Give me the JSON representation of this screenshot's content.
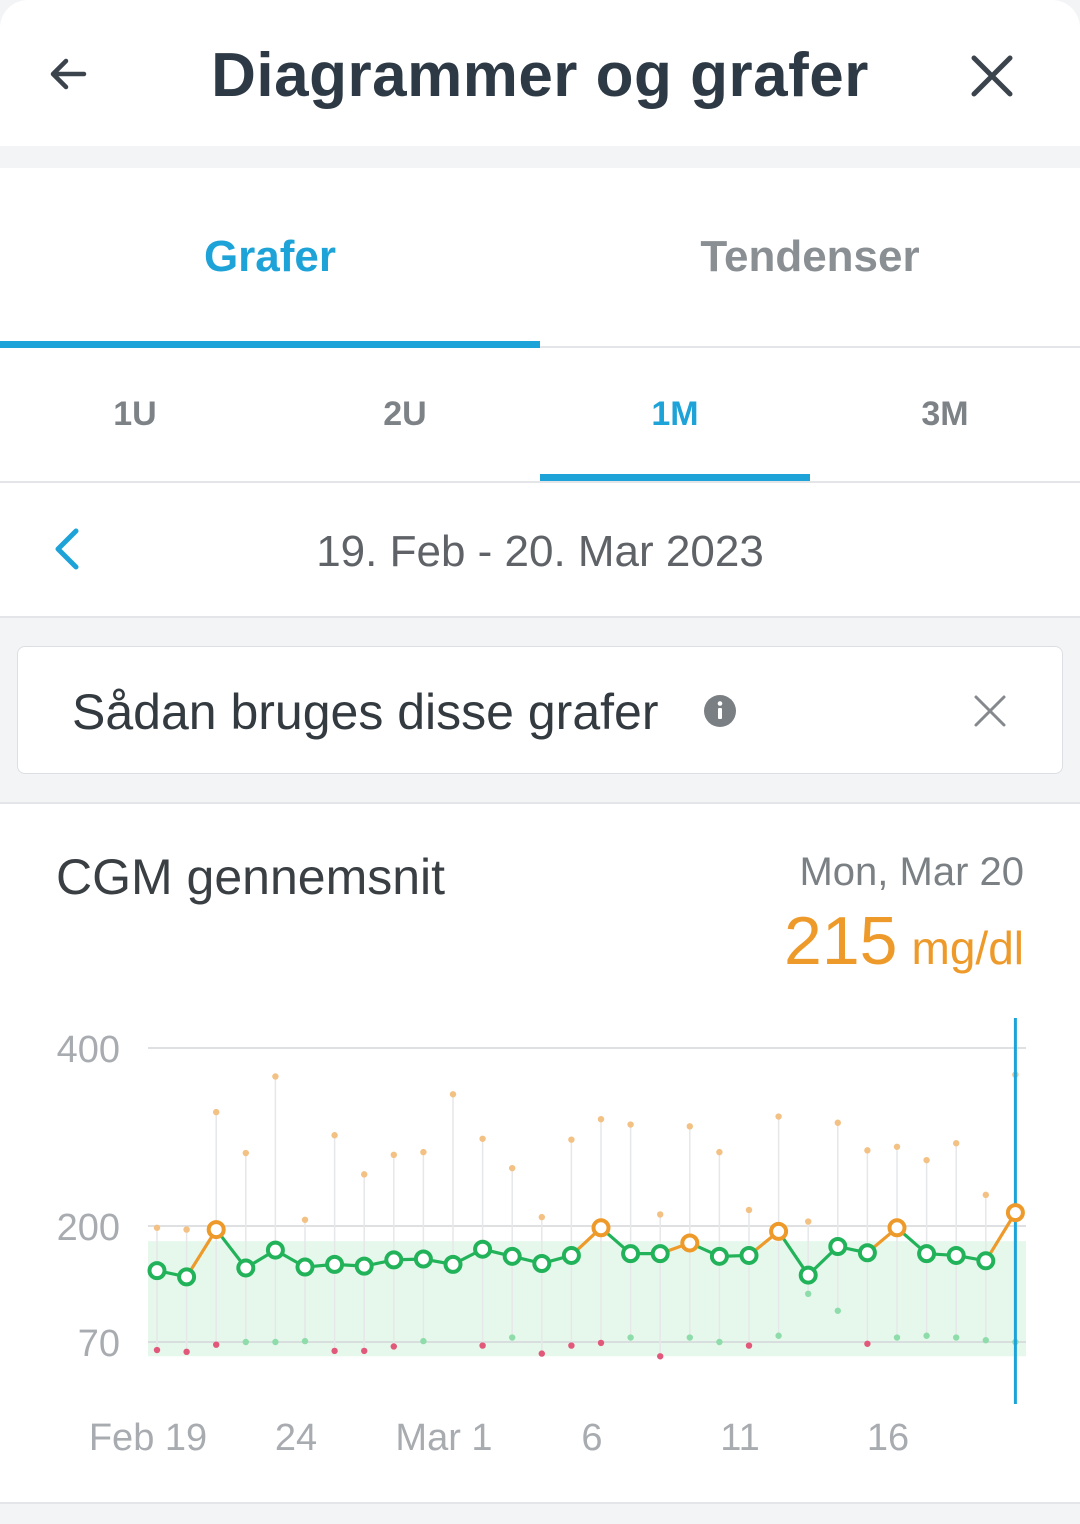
{
  "header": {
    "title": "Diagrammer og grafer",
    "back_icon": "arrow-left-icon",
    "close_icon": "close-icon"
  },
  "tabs": [
    {
      "label": "Grafer",
      "active": true
    },
    {
      "label": "Tendenser",
      "active": false
    }
  ],
  "ranges": [
    {
      "label": "1U",
      "active": false
    },
    {
      "label": "2U",
      "active": false
    },
    {
      "label": "1M",
      "active": true
    },
    {
      "label": "3M",
      "active": false
    }
  ],
  "date_range": {
    "label": "19. Feb - 20. Mar 2023",
    "prev_icon": "chevron-left-icon"
  },
  "info_card": {
    "label": "Sådan bruges disse grafer",
    "info_icon": "info-icon",
    "dismiss_icon": "close-icon"
  },
  "colors": {
    "accent": "#1ea3d9",
    "in_range": "#22b35a",
    "high": "#ee9a2a",
    "low": "#e2587a",
    "target_band": "#e6f8ec"
  },
  "chart_card": {
    "title": "CGM gennemsnit",
    "selected_date": "Mon, Mar 20",
    "selected_value": "215",
    "selected_unit": "mg/dl"
  },
  "chart_data": {
    "type": "line",
    "y_ticks": [
      "400",
      "200",
      "70"
    ],
    "x_tick_labels": [
      "Feb 19",
      "24",
      "Mar 1",
      "6",
      "11",
      "16"
    ],
    "x_tick_index": [
      0,
      5,
      10,
      15,
      20,
      25
    ],
    "target_range": [
      60,
      180
    ],
    "highlight_index": 29,
    "series": [
      {
        "values": [
          150,
          143,
          196,
          153,
          173,
          154,
          157,
          155,
          162,
          163,
          157,
          174,
          166,
          158,
          167,
          198,
          169,
          169,
          181,
          166,
          167,
          194,
          145,
          177,
          170,
          198,
          169,
          167,
          161,
          215
        ]
      }
    ],
    "max": [
      198,
      196,
      328,
      282,
      368,
      207,
      302,
      258,
      280,
      283,
      348,
      298,
      265,
      210,
      297,
      320,
      314,
      213,
      312,
      283,
      218,
      323,
      205,
      316,
      285,
      289,
      274,
      293,
      235,
      370
    ],
    "min": [
      61,
      59,
      67,
      70,
      70,
      71,
      60,
      60,
      65,
      71,
      null,
      66,
      75,
      57,
      66,
      69,
      75,
      54,
      75,
      70,
      66,
      77,
      124,
      105,
      68,
      75,
      77,
      75,
      72,
      70
    ]
  }
}
